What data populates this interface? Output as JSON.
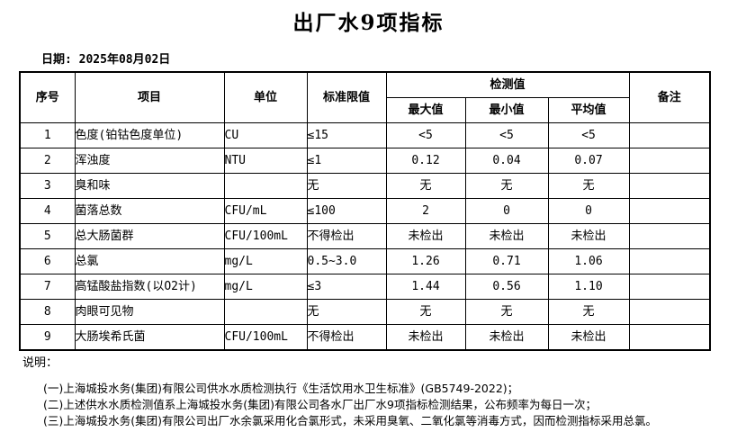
{
  "page": {
    "title": "出厂水9项指标",
    "date": "日期: 2025年08月02日"
  },
  "table": {
    "headers": {
      "seq": "序号",
      "item": "项目",
      "unit": "单位",
      "limit": "标准限值",
      "detection_group": "检测值",
      "max": "最大值",
      "min": "最小值",
      "avg": "平均值",
      "remark": "备注"
    },
    "rows": [
      {
        "seq": "1",
        "item": "色度(铂钴色度单位)",
        "unit": "CU",
        "limit": "≤15",
        "max": "<5",
        "min": "<5",
        "avg": "<5",
        "remark": ""
      },
      {
        "seq": "2",
        "item": "浑浊度",
        "unit": "NTU",
        "limit": "≤1",
        "max": "0.12",
        "min": "0.04",
        "avg": "0.07",
        "remark": ""
      },
      {
        "seq": "3",
        "item": "臭和味",
        "unit": "",
        "limit": "无",
        "max": "无",
        "min": "无",
        "avg": "无",
        "remark": ""
      },
      {
        "seq": "4",
        "item": "菌落总数",
        "unit": "CFU/mL",
        "limit": "≤100",
        "max": "2",
        "min": "0",
        "avg": "0",
        "remark": ""
      },
      {
        "seq": "5",
        "item": "总大肠菌群",
        "unit": "CFU/100mL",
        "limit": "不得检出",
        "max": "未检出",
        "min": "未检出",
        "avg": "未检出",
        "remark": ""
      },
      {
        "seq": "6",
        "item": "总氯",
        "unit": "mg/L",
        "limit": "0.5~3.0",
        "max": "1.26",
        "min": "0.71",
        "avg": "1.06",
        "remark": ""
      },
      {
        "seq": "7",
        "item": "高锰酸盐指数(以O2计)",
        "unit": "mg/L",
        "limit": "≤3",
        "max": "1.44",
        "min": "0.56",
        "avg": "1.10",
        "remark": ""
      },
      {
        "seq": "8",
        "item": "肉眼可见物",
        "unit": "",
        "limit": "无",
        "max": "无",
        "min": "无",
        "avg": "无",
        "remark": ""
      },
      {
        "seq": "9",
        "item": "大肠埃希氏菌",
        "unit": "CFU/100mL",
        "limit": "不得检出",
        "max": "未检出",
        "min": "未检出",
        "avg": "未检出",
        "remark": ""
      }
    ]
  },
  "notes": {
    "heading": "说明：",
    "items": [
      "(一)上海城投水务(集团)有限公司供水水质检测执行《生活饮用水卫生标准》(GB5749-2022)；",
      "(二)上述供水水质检测值系上海城投水务(集团)有限公司各水厂出厂水9项指标检测结果，公布频率为每日一次；",
      "(三)上海城投水务(集团)有限公司出厂水余氯采用化合氯形式，未采用臭氧、二氧化氯等消毒方式，因而检测指标采用总氯。"
    ]
  }
}
